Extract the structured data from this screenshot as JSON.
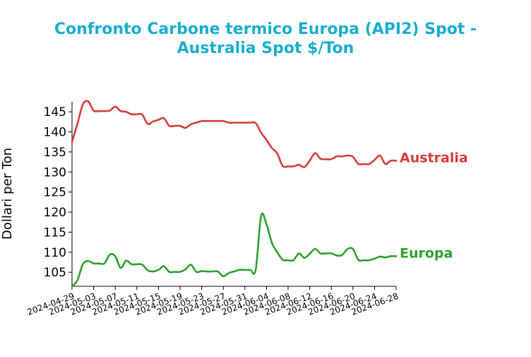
{
  "chart_data": {
    "type": "line",
    "title_lines": [
      "Confronto Carbone termico Europa (API2) Spot -",
      "Australia Spot $/Ton"
    ],
    "title_color": "#1aadce",
    "xlabel": "",
    "ylabel": "Dollari per Ton",
    "x_type": "date",
    "xlim": [
      "2024-04-29",
      "2024-06-28"
    ],
    "ylim": [
      101.5,
      147.5
    ],
    "yticks": [
      105,
      110,
      115,
      120,
      125,
      130,
      135,
      140,
      145
    ],
    "xticks": [
      "2024-04-29",
      "2024-05-03",
      "2024-05-07",
      "2024-05-11",
      "2024-05-15",
      "2024-05-19",
      "2024-05-23",
      "2024-05-27",
      "2024-05-31",
      "2024-06-04",
      "2024-06-08",
      "2024-06-12",
      "2024-06-16",
      "2024-06-20",
      "2024-06-24",
      "2024-06-28"
    ],
    "grid": false,
    "legend": "end-of-line labels",
    "series": [
      {
        "name": "Australia",
        "color": "#d93a3a",
        "points": [
          [
            "2024-04-29",
            137.5
          ],
          [
            "2024-04-30",
            142
          ],
          [
            "2024-05-01",
            146.8
          ],
          [
            "2024-05-02",
            147.6
          ],
          [
            "2024-05-03",
            145.3
          ],
          [
            "2024-05-04",
            145.2
          ],
          [
            "2024-05-05",
            145.2
          ],
          [
            "2024-05-06",
            145.3
          ],
          [
            "2024-05-07",
            146.3
          ],
          [
            "2024-05-08",
            145.2
          ],
          [
            "2024-05-09",
            145
          ],
          [
            "2024-05-10",
            144.4
          ],
          [
            "2024-05-11",
            144.4
          ],
          [
            "2024-05-12",
            144.3
          ],
          [
            "2024-05-13",
            142
          ],
          [
            "2024-05-14",
            142.6
          ],
          [
            "2024-05-15",
            143
          ],
          [
            "2024-05-16",
            143.4
          ],
          [
            "2024-05-17",
            141.5
          ],
          [
            "2024-05-18",
            141.5
          ],
          [
            "2024-05-19",
            141.5
          ],
          [
            "2024-05-20",
            141
          ],
          [
            "2024-05-21",
            141.9
          ],
          [
            "2024-05-22",
            142.3
          ],
          [
            "2024-05-23",
            142.7
          ],
          [
            "2024-05-24",
            142.7
          ],
          [
            "2024-05-25",
            142.7
          ],
          [
            "2024-05-26",
            142.7
          ],
          [
            "2024-05-27",
            142.7
          ],
          [
            "2024-05-28",
            142.3
          ],
          [
            "2024-05-29",
            142.3
          ],
          [
            "2024-05-30",
            142.3
          ],
          [
            "2024-05-31",
            142.3
          ],
          [
            "2024-06-01",
            142.3
          ],
          [
            "2024-06-02",
            142.2
          ],
          [
            "2024-06-03",
            139.8
          ],
          [
            "2024-06-04",
            138
          ],
          [
            "2024-06-05",
            136
          ],
          [
            "2024-06-06",
            134.6
          ],
          [
            "2024-06-07",
            131.5
          ],
          [
            "2024-06-08",
            131.4
          ],
          [
            "2024-06-09",
            131.4
          ],
          [
            "2024-06-10",
            131.8
          ],
          [
            "2024-06-11",
            131.2
          ],
          [
            "2024-06-12",
            132.8
          ],
          [
            "2024-06-13",
            134.7
          ],
          [
            "2024-06-14",
            133.3
          ],
          [
            "2024-06-15",
            133.2
          ],
          [
            "2024-06-16",
            133.2
          ],
          [
            "2024-06-17",
            133.9
          ],
          [
            "2024-06-18",
            133.9
          ],
          [
            "2024-06-19",
            134.1
          ],
          [
            "2024-06-20",
            133.8
          ],
          [
            "2024-06-21",
            132
          ],
          [
            "2024-06-22",
            132
          ],
          [
            "2024-06-23",
            132
          ],
          [
            "2024-06-24",
            133
          ],
          [
            "2024-06-25",
            134.1
          ],
          [
            "2024-06-26",
            132
          ],
          [
            "2024-06-27",
            132.8
          ],
          [
            "2024-06-28",
            132.8
          ]
        ]
      },
      {
        "name": "Europa",
        "color": "#2ca02c",
        "points": [
          [
            "2024-04-29",
            101.5
          ],
          [
            "2024-04-30",
            103
          ],
          [
            "2024-05-01",
            107
          ],
          [
            "2024-05-02",
            107.8
          ],
          [
            "2024-05-03",
            107.2
          ],
          [
            "2024-05-04",
            107.2
          ],
          [
            "2024-05-05",
            107.2
          ],
          [
            "2024-05-06",
            109.4
          ],
          [
            "2024-05-07",
            109
          ],
          [
            "2024-05-08",
            106.1
          ],
          [
            "2024-05-09",
            107.9
          ],
          [
            "2024-05-10",
            107
          ],
          [
            "2024-05-11",
            107
          ],
          [
            "2024-05-12",
            106.9
          ],
          [
            "2024-05-13",
            105.5
          ],
          [
            "2024-05-14",
            105.2
          ],
          [
            "2024-05-15",
            105.6
          ],
          [
            "2024-05-16",
            106.5
          ],
          [
            "2024-05-17",
            105.1
          ],
          [
            "2024-05-18",
            105.1
          ],
          [
            "2024-05-19",
            105.1
          ],
          [
            "2024-05-20",
            105.7
          ],
          [
            "2024-05-21",
            106.9
          ],
          [
            "2024-05-22",
            105.1
          ],
          [
            "2024-05-23",
            105.3
          ],
          [
            "2024-05-24",
            105.2
          ],
          [
            "2024-05-25",
            105.2
          ],
          [
            "2024-05-26",
            105.2
          ],
          [
            "2024-05-27",
            104
          ],
          [
            "2024-05-28",
            104.8
          ],
          [
            "2024-05-29",
            105.2
          ],
          [
            "2024-05-30",
            105.6
          ],
          [
            "2024-05-31",
            105.6
          ],
          [
            "2024-06-01",
            105.6
          ],
          [
            "2024-06-02",
            105.6
          ],
          [
            "2024-06-03",
            119
          ],
          [
            "2024-06-04",
            117
          ],
          [
            "2024-06-05",
            112.3
          ],
          [
            "2024-06-06",
            110
          ],
          [
            "2024-06-07",
            108.1
          ],
          [
            "2024-06-08",
            108
          ],
          [
            "2024-06-09",
            108
          ],
          [
            "2024-06-10",
            109.7
          ],
          [
            "2024-06-11",
            108.6
          ],
          [
            "2024-06-12",
            109.6
          ],
          [
            "2024-06-13",
            110.8
          ],
          [
            "2024-06-14",
            109.7
          ],
          [
            "2024-06-15",
            109.7
          ],
          [
            "2024-06-16",
            109.7
          ],
          [
            "2024-06-17",
            109.2
          ],
          [
            "2024-06-18",
            109.3
          ],
          [
            "2024-06-19",
            110.8
          ],
          [
            "2024-06-20",
            110.8
          ],
          [
            "2024-06-21",
            108.1
          ],
          [
            "2024-06-22",
            108
          ],
          [
            "2024-06-23",
            108
          ],
          [
            "2024-06-24",
            108.4
          ],
          [
            "2024-06-25",
            108.9
          ],
          [
            "2024-06-26",
            108.7
          ],
          [
            "2024-06-27",
            109
          ],
          [
            "2024-06-28",
            109
          ]
        ]
      }
    ]
  }
}
